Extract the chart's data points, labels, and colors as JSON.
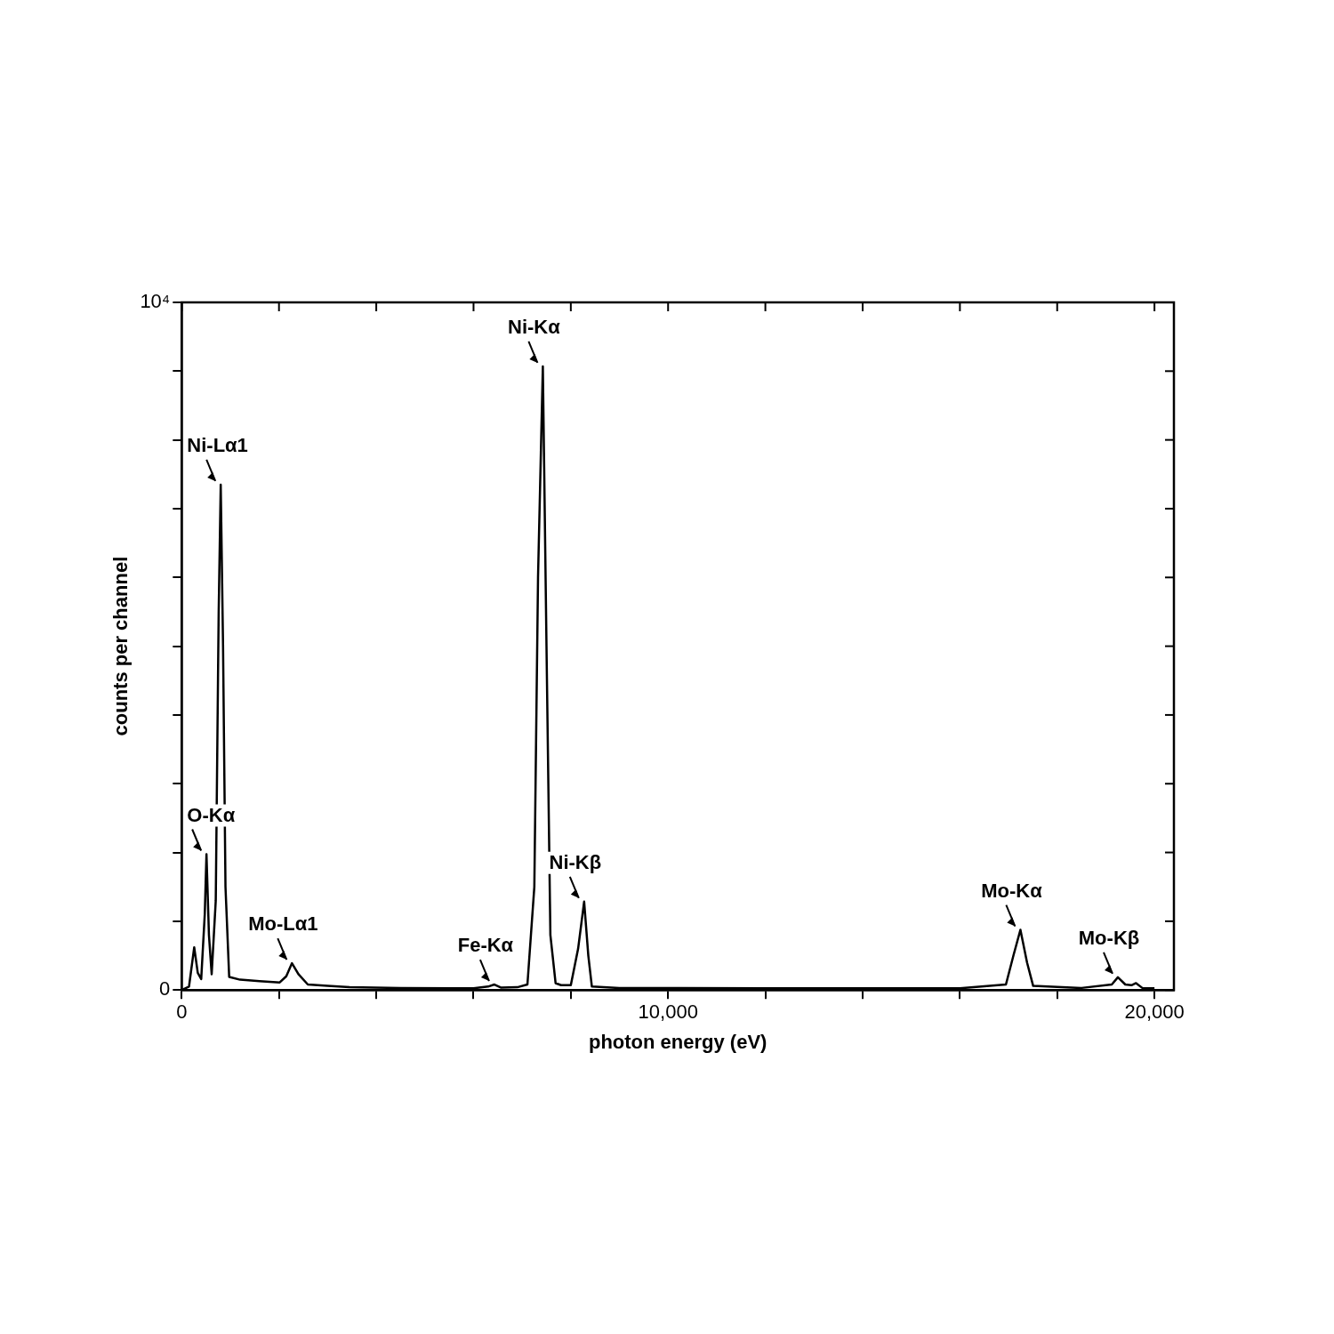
{
  "chart_data": {
    "type": "line",
    "xlabel": "photon energy (eV)",
    "ylabel": "counts per channel",
    "xlim": [
      0,
      20400
    ],
    "xticks": [
      0,
      {
        "value": 2000,
        "label": null
      },
      {
        "value": 4000,
        "label": null
      },
      {
        "value": 6000,
        "label": null
      },
      {
        "value": 8000,
        "label": null
      },
      {
        "value": 10000,
        "label": "10,000"
      },
      {
        "value": 12000,
        "label": null
      },
      {
        "value": 14000,
        "label": null
      },
      {
        "value": 16000,
        "label": null
      },
      {
        "value": 18000,
        "label": null
      },
      {
        "value": 20000,
        "label": "20,000"
      }
    ],
    "ylim": [
      0,
      10000
    ],
    "yticks": [
      0,
      {
        "value": 1000,
        "label": null
      },
      {
        "value": 2000,
        "label": null
      },
      {
        "value": 3000,
        "label": null
      },
      {
        "value": 4000,
        "label": null
      },
      {
        "value": 5000,
        "label": null
      },
      {
        "value": 6000,
        "label": null
      },
      {
        "value": 7000,
        "label": null
      },
      {
        "value": 8000,
        "label": null
      },
      {
        "value": 9000,
        "label": null
      },
      {
        "value": 10000,
        "label": "10⁴"
      }
    ],
    "grid": false,
    "legend": false,
    "marker": "none",
    "line_style": "solid",
    "series": [
      {
        "color": "#000000",
        "x": [
          0,
          150,
          257,
          330,
          401,
          474,
          509,
          560,
          616,
          700,
          760,
          802,
          850,
          900,
          976,
          1200,
          1600,
          2015,
          2150,
          2267,
          2400,
          2593,
          3000,
          3451,
          4500,
          6000,
          6300,
          6429,
          6560,
          6900,
          7108,
          7250,
          7326,
          7425,
          7500,
          7580,
          7687,
          7800,
          8000,
          8150,
          8274,
          8360,
          8433,
          9000,
          12000,
          16000,
          16946,
          17100,
          17244,
          17380,
          17506,
          18500,
          19123,
          19248,
          19400,
          19528,
          19621,
          19750,
          20000
        ],
        "values": [
          0,
          50,
          620,
          250,
          160,
          1100,
          1975,
          800,
          230,
          1300,
          5500,
          7350,
          5000,
          1500,
          190,
          150,
          130,
          110,
          200,
          390,
          230,
          80,
          60,
          40,
          30,
          25,
          50,
          80,
          35,
          40,
          80,
          1500,
          6000,
          9070,
          5000,
          800,
          100,
          70,
          70,
          600,
          1285,
          500,
          50,
          30,
          25,
          25,
          80,
          500,
          875,
          400,
          60,
          30,
          80,
          185,
          80,
          70,
          100,
          30,
          25
        ]
      }
    ],
    "annotations": [
      {
        "text": "O-Kα",
        "x": 509,
        "y": 1975
      },
      {
        "text": "Ni-Lα1",
        "x": 802,
        "y": 7350
      },
      {
        "text": "Mo-Lα1",
        "x": 2267,
        "y": 390
      },
      {
        "text": "Fe-Kα",
        "x": 6429,
        "y": 80
      },
      {
        "text": "Ni-Kα",
        "x": 7425,
        "y": 9070
      },
      {
        "text": "Ni-Kβ",
        "x": 8274,
        "y": 1285
      },
      {
        "text": "Mo-Kα",
        "x": 17244,
        "y": 875
      },
      {
        "text": "Mo-Kβ",
        "x": 19248,
        "y": 185
      }
    ]
  }
}
